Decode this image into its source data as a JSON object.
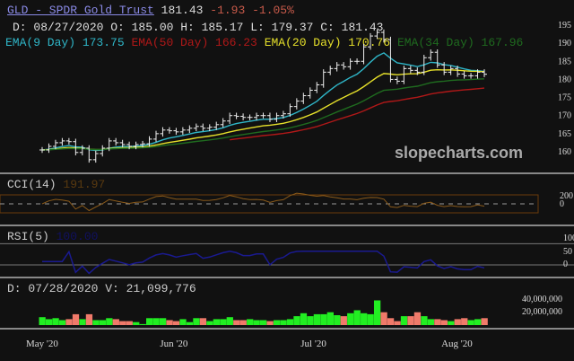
{
  "header": {
    "symbol_title": "GLD - SPDR Gold Trust",
    "last": "181.43",
    "change": "-1.93",
    "change_pct": "-1.05%",
    "ohlc_line": "D: 08/27/2020 O: 185.00 H: 185.17 L: 179.37 C: 181.43"
  },
  "ema_labels": [
    {
      "text": "EMA(9 Day) 173.75",
      "color": "#2fb6c8"
    },
    {
      "text": "EMA(50 Day) 166.23",
      "color": "#b01818"
    },
    {
      "text": "EMA(20 Day) 170.76",
      "color": "#e6e02a"
    },
    {
      "text": "EMA(34 Day) 167.96",
      "color": "#1f6b1f"
    }
  ],
  "watermark": "slopecharts.com",
  "cci": {
    "label": "CCI(14)",
    "value": "191.97"
  },
  "rsi": {
    "label": "RSI(5)",
    "value": "100.00"
  },
  "volume_line": "D: 07/28/2020 V: 21,099,776",
  "chart_data": {
    "type": "candlestick",
    "title": "GLD - SPDR Gold Trust",
    "price_ticks": [
      160,
      165,
      170,
      175,
      180,
      185,
      190,
      195
    ],
    "ylim": [
      157,
      197
    ],
    "cci_ticks": [
      "200",
      "0"
    ],
    "rsi_ticks": [
      "100",
      "50",
      "0"
    ],
    "volume_ticks": [
      "40,000,000",
      "20,000,000"
    ],
    "x_labels": [
      "May '20",
      "Jun '20",
      "Jul '20",
      "Aug '20"
    ],
    "x_label_index": [
      0,
      20,
      41,
      62
    ],
    "close": [
      160.5,
      161.5,
      162.5,
      163,
      162.8,
      159.8,
      161,
      157.8,
      159.5,
      161,
      163,
      162.5,
      162,
      161.5,
      162,
      162.2,
      163.5,
      165,
      166,
      165.8,
      165.5,
      166,
      166.5,
      167,
      166.5,
      166.8,
      167.5,
      168.5,
      170,
      169.8,
      169.5,
      169.5,
      170,
      170,
      169,
      170,
      170.5,
      172.5,
      174,
      175.5,
      177,
      178.5,
      182,
      183,
      184,
      183.5,
      185,
      185,
      189,
      192,
      193,
      191,
      180,
      179.5,
      183,
      182.5,
      182,
      186,
      187.5,
      184,
      182,
      183,
      181.5,
      181,
      181,
      182,
      181.43
    ],
    "volume_millions": [
      8,
      6,
      7,
      5,
      6,
      11,
      6,
      11,
      5,
      5,
      7,
      6,
      4,
      4,
      3,
      1,
      7,
      7,
      7,
      5,
      4,
      6,
      3,
      7,
      7,
      4,
      6,
      6,
      8,
      5,
      5,
      6,
      5,
      5,
      4,
      5,
      5,
      6,
      9,
      12,
      9,
      11,
      11,
      13,
      10,
      9,
      12,
      15,
      12,
      11,
      25,
      13,
      7,
      4,
      9,
      9,
      13,
      9,
      6,
      6,
      5,
      4,
      6,
      7,
      5,
      6,
      7
    ]
  }
}
